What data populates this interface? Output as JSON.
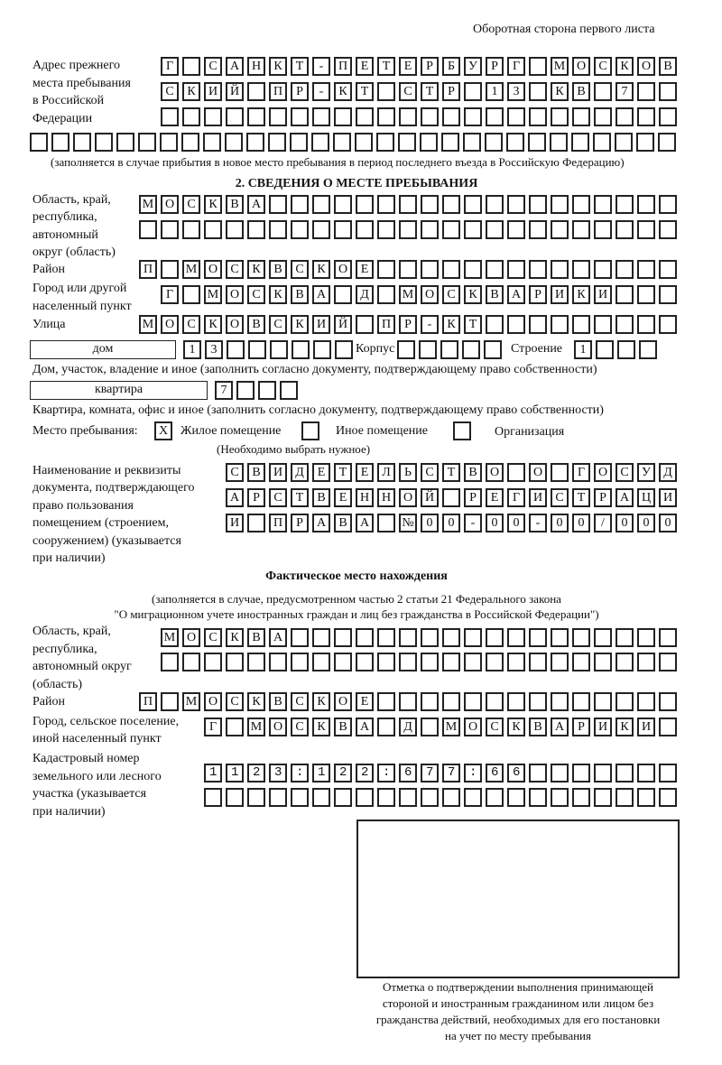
{
  "header": {
    "page_side": "Оборотная сторона первого листа"
  },
  "prev_address": {
    "label": [
      "Адрес прежнего",
      "места пребывания",
      "в Российской",
      "Федерации"
    ],
    "rows": [
      "Г САНКТ-ПЕТЕРБУРГ МОСКОВ",
      "СКИЙ ПР-КТ СТР 13 КВ 7  ",
      "                        ",
      "                              "
    ],
    "note": "(заполняется в случае прибытия в новое место пребывания в период последнего въезда в Российскую Федерацию)"
  },
  "section2": {
    "title": "2. СВЕДЕНИЯ О МЕСТЕ ПРЕБЫВАНИЯ",
    "region_label": [
      "Область, край,",
      "республика,",
      "автономный",
      "округ (область)"
    ],
    "region_rows": [
      "МОСКВА                   ",
      "                         "
    ],
    "district_label": "Район",
    "district_row": "П МОСКВСКОЕ              ",
    "city_label": [
      "Город или другой",
      "населенный пункт"
    ],
    "city_row": "Г МОСКВА Д МОСКВАРИКИ   ",
    "street_label": "Улица",
    "street_row": "МОСКОВСКИЙ ПР-КТ         ",
    "house_type": "дом",
    "house_row": "13      ",
    "korpus_label": "Корпус",
    "korpus_row": "     ",
    "stroenie_label": "Строение",
    "stroenie_row": "1   ",
    "house_note": "Дом, участок, владение и иное (заполнить согласно документу, подтверждающему право собственности)",
    "apt_type": "квартира",
    "apt_row": "7   ",
    "apt_note": "Квартира, комната, офис и иное (заполнить согласно документу, подтверждающему право собственности)",
    "place_label": "Место пребывания:",
    "place_options": [
      {
        "label": "Жилое помещение",
        "mark": "X"
      },
      {
        "label": "Иное помещение",
        "mark": ""
      },
      {
        "label": "Организация",
        "mark": ""
      }
    ],
    "place_hint": "(Необходимо выбрать нужное)",
    "doc_label": [
      "Наименование и реквизиты",
      "документа, подтверждающего",
      "право пользования",
      "помещением (строением,",
      "сооружением) (указывается",
      "при наличии)"
    ],
    "doc_rows": [
      "СВИДЕТЕЛЬСТВО О ГОСУД",
      "АРСТВЕННОЙ РЕГИСТРАЦИ",
      "И ПРАВА №00-00-00/000"
    ]
  },
  "actual": {
    "title": "Фактическое место нахождения",
    "note": [
      "(заполняется в случае, предусмотренном частью 2 статьи 21 Федерального закона",
      "\"О миграционном учете иностранных граждан и лиц без гражданства в Российской Федерации\")"
    ],
    "region_label": [
      "Область, край,",
      "республика,",
      "автономный округ",
      "(область)"
    ],
    "region_rows": [
      "МОСКВА                  ",
      "                        "
    ],
    "district_label": "Район",
    "district_row": "П МОСКВСКОЕ              ",
    "city_label": [
      "Город, сельское поселение,",
      "иной населенный пункт"
    ],
    "city_row": "Г МОСКВА Д МОСКВАРИКИ ",
    "cadastre_label": [
      "Кадастровый номер",
      "земельного или лесного",
      "участка (указывается",
      "при наличии)"
    ],
    "cadastre_rows": [
      "1123:122:677:66       ",
      "                      "
    ]
  },
  "confirmation": {
    "caption": [
      "Отметка о подтверждении выполнения принимающей",
      "стороной и иностранным гражданином или лицом без",
      "гражданства действий, необходимых для его постановки",
      "на учет по месту пребывания"
    ]
  }
}
